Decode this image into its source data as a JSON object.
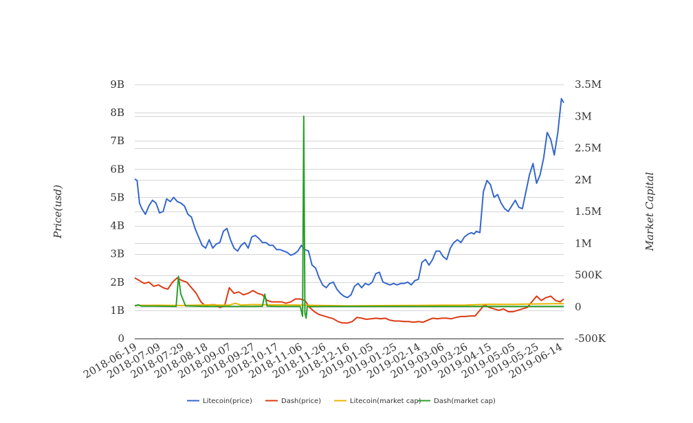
{
  "chart_data": {
    "type": "line",
    "title": "",
    "ylabel_left": "Price(usd)",
    "ylabel_right": "Market Capital",
    "xlabel": "",
    "y_left": {
      "min": 0,
      "max": 9000000000,
      "ticks": [
        0,
        1000000000,
        2000000000,
        3000000000,
        4000000000,
        5000000000,
        6000000000,
        7000000000,
        8000000000,
        9000000000
      ],
      "tick_labels": [
        "0",
        "1B",
        "2B",
        "3B",
        "4B",
        "5B",
        "6B",
        "7B",
        "8B",
        "9B"
      ]
    },
    "y_right": {
      "min": -500000,
      "max": 3500000,
      "ticks": [
        -500000,
        0,
        500000,
        1000000,
        1500000,
        2000000,
        2500000,
        3000000,
        3500000
      ],
      "tick_labels": [
        "-500K",
        "0",
        "500K",
        "1M",
        "1.5M",
        "2M",
        "2.5M",
        "3M",
        "3.5M"
      ]
    },
    "x_tick_labels": [
      "2018-06-19",
      "2018-07-09",
      "2018-07-29",
      "2018-08-18",
      "2018-09-07",
      "2018-09-27",
      "2018-10-17",
      "2018-11-06",
      "2018-11-26",
      "2018-12-16",
      "2019-01-05",
      "2019-01-25",
      "2019-02-14",
      "2019-03-06",
      "2019-03-26",
      "2019-04-15",
      "2019-05-05",
      "2019-05-25",
      "2019-06-14"
    ],
    "x_range": [
      "2018-06-19",
      "2019-06-17"
    ],
    "legend_position": "bottom",
    "grid": true,
    "series": [
      {
        "name": "Litecoin(price)",
        "axis": "left",
        "color": "#3366cc",
        "x": [
          "2018-06-19",
          "2018-06-21",
          "2018-06-23",
          "2018-06-25",
          "2018-06-28",
          "2018-07-01",
          "2018-07-04",
          "2018-07-07",
          "2018-07-10",
          "2018-07-13",
          "2018-07-16",
          "2018-07-19",
          "2018-07-22",
          "2018-07-25",
          "2018-07-28",
          "2018-07-31",
          "2018-08-03",
          "2018-08-06",
          "2018-08-09",
          "2018-08-12",
          "2018-08-15",
          "2018-08-18",
          "2018-08-21",
          "2018-08-24",
          "2018-08-27",
          "2018-08-30",
          "2018-09-02",
          "2018-09-05",
          "2018-09-08",
          "2018-09-11",
          "2018-09-14",
          "2018-09-17",
          "2018-09-20",
          "2018-09-23",
          "2018-09-26",
          "2018-09-29",
          "2018-10-02",
          "2018-10-05",
          "2018-10-08",
          "2018-10-11",
          "2018-10-14",
          "2018-10-17",
          "2018-10-20",
          "2018-10-23",
          "2018-10-26",
          "2018-10-29",
          "2018-11-01",
          "2018-11-04",
          "2018-11-07",
          "2018-11-10",
          "2018-11-13",
          "2018-11-16",
          "2018-11-19",
          "2018-11-22",
          "2018-11-25",
          "2018-11-28",
          "2018-12-01",
          "2018-12-04",
          "2018-12-07",
          "2018-12-10",
          "2018-12-13",
          "2018-12-16",
          "2018-12-19",
          "2018-12-22",
          "2018-12-25",
          "2018-12-28",
          "2018-12-31",
          "2019-01-03",
          "2019-01-06",
          "2019-01-09",
          "2019-01-12",
          "2019-01-15",
          "2019-01-18",
          "2019-01-21",
          "2019-01-24",
          "2019-01-27",
          "2019-01-30",
          "2019-02-02",
          "2019-02-05",
          "2019-02-08",
          "2019-02-11",
          "2019-02-14",
          "2019-02-17",
          "2019-02-20",
          "2019-02-23",
          "2019-02-26",
          "2019-03-01",
          "2019-03-04",
          "2019-03-07",
          "2019-03-10",
          "2019-03-13",
          "2019-03-16",
          "2019-03-19",
          "2019-03-22",
          "2019-03-25",
          "2019-03-28",
          "2019-03-31",
          "2019-04-02",
          "2019-04-04",
          "2019-04-07",
          "2019-04-10",
          "2019-04-13",
          "2019-04-16",
          "2019-04-19",
          "2019-04-22",
          "2019-04-25",
          "2019-04-28",
          "2019-05-01",
          "2019-05-04",
          "2019-05-07",
          "2019-05-10",
          "2019-05-13",
          "2019-05-16",
          "2019-05-19",
          "2019-05-22",
          "2019-05-25",
          "2019-05-28",
          "2019-05-31",
          "2019-06-03",
          "2019-06-06",
          "2019-06-09",
          "2019-06-12",
          "2019-06-15",
          "2019-06-17"
        ],
        "values": [
          5650000000.0,
          5600000000.0,
          4800000000.0,
          4600000000.0,
          4400000000.0,
          4700000000.0,
          4900000000.0,
          4800000000.0,
          4450000000.0,
          4500000000.0,
          4950000000.0,
          4850000000.0,
          5000000000.0,
          4850000000.0,
          4800000000.0,
          4700000000.0,
          4400000000.0,
          4300000000.0,
          3900000000.0,
          3600000000.0,
          3300000000.0,
          3200000000.0,
          3500000000.0,
          3200000000.0,
          3350000000.0,
          3400000000.0,
          3800000000.0,
          3900000000.0,
          3500000000.0,
          3200000000.0,
          3100000000.0,
          3300000000.0,
          3400000000.0,
          3200000000.0,
          3600000000.0,
          3650000000.0,
          3550000000.0,
          3400000000.0,
          3400000000.0,
          3300000000.0,
          3300000000.0,
          3150000000.0,
          3150000000.0,
          3100000000.0,
          3050000000.0,
          2950000000.0,
          3000000000.0,
          3100000000.0,
          3300000000.0,
          3150000000.0,
          3100000000.0,
          2600000000.0,
          2500000000.0,
          2150000000.0,
          1900000000.0,
          1800000000.0,
          1950000000.0,
          2000000000.0,
          1750000000.0,
          1600000000.0,
          1500000000.0,
          1450000000.0,
          1550000000.0,
          1850000000.0,
          1950000000.0,
          1800000000.0,
          1950000000.0,
          1900000000.0,
          2000000000.0,
          2300000000.0,
          2350000000.0,
          2000000000.0,
          1950000000.0,
          1900000000.0,
          1950000000.0,
          1900000000.0,
          1950000000.0,
          1950000000.0,
          2000000000.0,
          1900000000.0,
          2050000000.0,
          2100000000.0,
          2700000000.0,
          2800000000.0,
          2600000000.0,
          2800000000.0,
          3100000000.0,
          3100000000.0,
          2900000000.0,
          2800000000.0,
          3200000000.0,
          3400000000.0,
          3500000000.0,
          3400000000.0,
          3600000000.0,
          3700000000.0,
          3750000000.0,
          3700000000.0,
          3800000000.0,
          3750000000.0,
          5200000000.0,
          5600000000.0,
          5450000000.0,
          5000000000.0,
          5100000000.0,
          4800000000.0,
          4600000000.0,
          4500000000.0,
          4700000000.0,
          4900000000.0,
          4650000000.0,
          4600000000.0,
          5200000000.0,
          5800000000.0,
          6200000000.0,
          5500000000.0,
          5800000000.0,
          6400000000.0,
          7300000000.0,
          7050000000.0,
          6500000000.0,
          7300000000.0,
          8500000000.0,
          8350000000.0
        ]
      },
      {
        "name": "Dash(price)",
        "axis": "left",
        "color": "#dc3912",
        "x": [
          "2018-06-19",
          "2018-06-23",
          "2018-06-27",
          "2018-07-01",
          "2018-07-05",
          "2018-07-09",
          "2018-07-13",
          "2018-07-17",
          "2018-07-21",
          "2018-07-25",
          "2018-07-29",
          "2018-08-02",
          "2018-08-06",
          "2018-08-10",
          "2018-08-14",
          "2018-08-18",
          "2018-08-22",
          "2018-08-26",
          "2018-08-30",
          "2018-09-03",
          "2018-09-07",
          "2018-09-11",
          "2018-09-15",
          "2018-09-19",
          "2018-09-23",
          "2018-09-27",
          "2018-10-01",
          "2018-10-05",
          "2018-10-09",
          "2018-10-13",
          "2018-10-17",
          "2018-10-21",
          "2018-10-25",
          "2018-10-29",
          "2018-11-02",
          "2018-11-06",
          "2018-11-10",
          "2018-11-14",
          "2018-11-18",
          "2018-11-22",
          "2018-11-26",
          "2018-11-30",
          "2018-12-04",
          "2018-12-08",
          "2018-12-12",
          "2018-12-16",
          "2018-12-20",
          "2018-12-24",
          "2018-12-28",
          "2019-01-01",
          "2019-01-05",
          "2019-01-09",
          "2019-01-13",
          "2019-01-17",
          "2019-01-21",
          "2019-01-25",
          "2019-01-29",
          "2019-02-02",
          "2019-02-06",
          "2019-02-10",
          "2019-02-14",
          "2019-02-18",
          "2019-02-22",
          "2019-02-26",
          "2019-03-02",
          "2019-03-06",
          "2019-03-10",
          "2019-03-14",
          "2019-03-18",
          "2019-03-22",
          "2019-03-26",
          "2019-03-30",
          "2019-04-03",
          "2019-04-07",
          "2019-04-11",
          "2019-04-15",
          "2019-04-19",
          "2019-04-23",
          "2019-04-27",
          "2019-05-01",
          "2019-05-05",
          "2019-05-09",
          "2019-05-13",
          "2019-05-17",
          "2019-05-21",
          "2019-05-25",
          "2019-05-29",
          "2019-06-02",
          "2019-06-06",
          "2019-06-10",
          "2019-06-14",
          "2019-06-17"
        ],
        "values": [
          2150000000.0,
          2050000000.0,
          1950000000.0,
          2000000000.0,
          1850000000.0,
          1900000000.0,
          1800000000.0,
          1750000000.0,
          2000000000.0,
          2150000000.0,
          2050000000.0,
          2000000000.0,
          1800000000.0,
          1600000000.0,
          1300000000.0,
          1150000000.0,
          1200000000.0,
          1200000000.0,
          1100000000.0,
          1150000000.0,
          1800000000.0,
          1600000000.0,
          1650000000.0,
          1550000000.0,
          1600000000.0,
          1700000000.0,
          1600000000.0,
          1550000000.0,
          1350000000.0,
          1300000000.0,
          1300000000.0,
          1300000000.0,
          1250000000.0,
          1300000000.0,
          1400000000.0,
          1400000000.0,
          1350000000.0,
          1100000000.0,
          950000000.0,
          850000000.0,
          800000000.0,
          750000000.0,
          700000000.0,
          600000000.0,
          550000000.0,
          550000000.0,
          600000000.0,
          750000000.0,
          720000000.0,
          680000000.0,
          700000000.0,
          720000000.0,
          700000000.0,
          720000000.0,
          650000000.0,
          620000000.0,
          620000000.0,
          600000000.0,
          600000000.0,
          580000000.0,
          600000000.0,
          580000000.0,
          650000000.0,
          720000000.0,
          700000000.0,
          720000000.0,
          720000000.0,
          700000000.0,
          750000000.0,
          780000000.0,
          780000000.0,
          800000000.0,
          800000000.0,
          1000000000.0,
          1200000000.0,
          1100000000.0,
          1050000000.0,
          1000000000.0,
          1050000000.0,
          950000000.0,
          950000000.0,
          1000000000.0,
          1050000000.0,
          1100000000.0,
          1300000000.0,
          1500000000.0,
          1350000000.0,
          1450000000.0,
          1500000000.0,
          1350000000.0,
          1300000000.0,
          1400000000.0
        ]
      },
      {
        "name": "Litecoin(market cap)",
        "axis": "right",
        "color": "#e6b400",
        "x": [
          "2018-06-19",
          "2018-07-09",
          "2018-07-29",
          "2018-08-18",
          "2018-09-07",
          "2018-09-12",
          "2018-09-17",
          "2018-09-27",
          "2018-10-17",
          "2018-11-06",
          "2018-11-26",
          "2018-12-16",
          "2019-01-05",
          "2019-01-25",
          "2019-02-14",
          "2019-03-06",
          "2019-03-26",
          "2019-04-15",
          "2019-05-05",
          "2019-05-25",
          "2019-06-14",
          "2019-06-17"
        ],
        "values": [
          22000,
          24000,
          20000,
          30000,
          25000,
          55000,
          28000,
          35000,
          30000,
          28000,
          20000,
          15000,
          18000,
          20000,
          22000,
          25000,
          28000,
          40000,
          38000,
          45000,
          50000,
          48000
        ]
      },
      {
        "name": "Dash(market cap)",
        "axis": "right",
        "color": "#2a9d2a",
        "x": [
          "2018-06-19",
          "2018-06-22",
          "2018-06-25",
          "2018-07-05",
          "2018-07-15",
          "2018-07-24",
          "2018-07-26",
          "2018-07-28",
          "2018-08-01",
          "2018-08-18",
          "2018-09-07",
          "2018-09-27",
          "2018-10-05",
          "2018-10-07",
          "2018-10-09",
          "2018-10-17",
          "2018-11-06",
          "2018-11-08",
          "2018-11-09",
          "2018-11-10",
          "2018-11-11",
          "2018-11-12",
          "2018-11-13",
          "2018-11-15",
          "2018-11-26",
          "2018-12-16",
          "2019-01-05",
          "2019-01-25",
          "2019-02-14",
          "2019-03-06",
          "2019-03-26",
          "2019-04-15",
          "2019-05-05",
          "2019-05-25",
          "2019-06-14",
          "2019-06-17"
        ],
        "values": [
          15000,
          30000,
          10000,
          10000,
          8000,
          5000,
          480000,
          200000,
          15000,
          5000,
          5000,
          5000,
          8000,
          200000,
          10000,
          5000,
          5000,
          -150000,
          3000000,
          -100000,
          -180000,
          10000,
          5000,
          3000,
          5000,
          5000,
          5000,
          5000,
          5000,
          5000,
          5000,
          5000,
          5000,
          5000,
          5000,
          5000
        ]
      }
    ]
  }
}
